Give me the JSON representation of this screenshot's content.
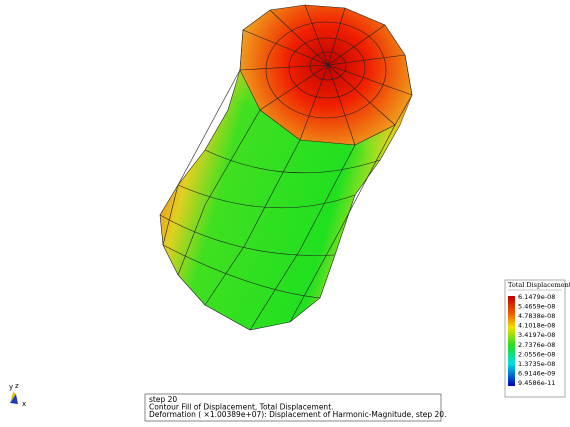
{
  "legend": {
    "title": "Total Displacement",
    "labels": [
      "6.1479e-08",
      "5.4659e-08",
      "4.7838e-08",
      "4.1018e-08",
      "3.4197e-08",
      "2.7376e-08",
      "2.0556e-08",
      "1.3735e-08",
      "6.9146e-09",
      "9.4586e-11"
    ]
  },
  "info": {
    "lines": [
      "step 20",
      "Contour Fill of Displacement, Total Displacement.",
      "Deformation ( ×1.00389e+07): Displacement of Harmonic-Magnitude, step 20."
    ]
  },
  "triad": {
    "y": "y",
    "z": "z",
    "x": "x"
  }
}
